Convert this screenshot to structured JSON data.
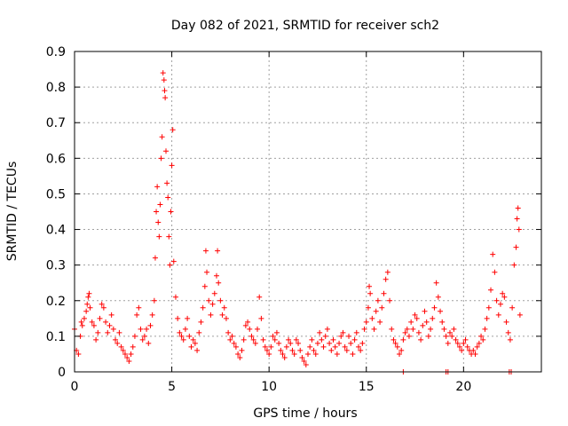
{
  "chart_data": {
    "type": "scatter",
    "title": "Day 082 of 2021, SRMTID for receiver sch2",
    "xlabel": "GPS time / hours",
    "ylabel": "SRMTID / TECUs",
    "xlim": [
      0,
      24
    ],
    "ylim": [
      0,
      0.9
    ],
    "xticks": [
      0,
      5,
      10,
      15,
      20
    ],
    "yticks": [
      0,
      0.1,
      0.2,
      0.3,
      0.4,
      0.5,
      0.6,
      0.7,
      0.8,
      0.9
    ],
    "x_tick_labels": [
      "0",
      "5",
      "10",
      "15",
      "20"
    ],
    "y_tick_labels": [
      "0",
      "0.1",
      "0.2",
      "0.3",
      "0.4",
      "0.5",
      "0.6",
      "0.7",
      "0.8",
      "0.9"
    ],
    "grid": true,
    "legend": "none",
    "marker": "+",
    "series": [
      {
        "name": "SRMTID",
        "color": "#ff0000",
        "points": [
          [
            0.0,
            0.12
          ],
          [
            0.1,
            0.06
          ],
          [
            0.2,
            0.05
          ],
          [
            0.3,
            0.1
          ],
          [
            0.35,
            0.14
          ],
          [
            0.4,
            0.13
          ],
          [
            0.5,
            0.15
          ],
          [
            0.6,
            0.17
          ],
          [
            0.65,
            0.19
          ],
          [
            0.7,
            0.21
          ],
          [
            0.75,
            0.22
          ],
          [
            0.8,
            0.18
          ],
          [
            0.9,
            0.14
          ],
          [
            1.0,
            0.13
          ],
          [
            1.1,
            0.09
          ],
          [
            1.2,
            0.11
          ],
          [
            1.3,
            0.15
          ],
          [
            1.4,
            0.19
          ],
          [
            1.5,
            0.18
          ],
          [
            1.6,
            0.14
          ],
          [
            1.7,
            0.11
          ],
          [
            1.8,
            0.13
          ],
          [
            1.9,
            0.16
          ],
          [
            2.0,
            0.12
          ],
          [
            2.1,
            0.09
          ],
          [
            2.2,
            0.08
          ],
          [
            2.3,
            0.11
          ],
          [
            2.4,
            0.07
          ],
          [
            2.5,
            0.06
          ],
          [
            2.6,
            0.05
          ],
          [
            2.7,
            0.04
          ],
          [
            2.8,
            0.03
          ],
          [
            2.9,
            0.05
          ],
          [
            3.0,
            0.07
          ],
          [
            3.1,
            0.1
          ],
          [
            3.2,
            0.16
          ],
          [
            3.3,
            0.18
          ],
          [
            3.4,
            0.12
          ],
          [
            3.5,
            0.09
          ],
          [
            3.6,
            0.1
          ],
          [
            3.7,
            0.12
          ],
          [
            3.8,
            0.08
          ],
          [
            3.9,
            0.13
          ],
          [
            4.0,
            0.16
          ],
          [
            4.1,
            0.2
          ],
          [
            4.15,
            0.32
          ],
          [
            4.2,
            0.45
          ],
          [
            4.25,
            0.52
          ],
          [
            4.3,
            0.42
          ],
          [
            4.35,
            0.38
          ],
          [
            4.4,
            0.47
          ],
          [
            4.45,
            0.6
          ],
          [
            4.5,
            0.66
          ],
          [
            4.55,
            0.84
          ],
          [
            4.6,
            0.82
          ],
          [
            4.63,
            0.79
          ],
          [
            4.66,
            0.77
          ],
          [
            4.7,
            0.62
          ],
          [
            4.75,
            0.53
          ],
          [
            4.8,
            0.49
          ],
          [
            4.85,
            0.38
          ],
          [
            4.9,
            0.3
          ],
          [
            4.95,
            0.45
          ],
          [
            5.0,
            0.58
          ],
          [
            5.05,
            0.68
          ],
          [
            5.1,
            0.31
          ],
          [
            5.2,
            0.21
          ],
          [
            5.3,
            0.15
          ],
          [
            5.4,
            0.11
          ],
          [
            5.5,
            0.1
          ],
          [
            5.6,
            0.09
          ],
          [
            5.7,
            0.12
          ],
          [
            5.8,
            0.15
          ],
          [
            5.9,
            0.1
          ],
          [
            6.0,
            0.07
          ],
          [
            6.1,
            0.09
          ],
          [
            6.2,
            0.08
          ],
          [
            6.3,
            0.06
          ],
          [
            6.4,
            0.11
          ],
          [
            6.5,
            0.14
          ],
          [
            6.6,
            0.18
          ],
          [
            6.7,
            0.24
          ],
          [
            6.75,
            0.34
          ],
          [
            6.8,
            0.28
          ],
          [
            6.9,
            0.2
          ],
          [
            7.0,
            0.16
          ],
          [
            7.1,
            0.19
          ],
          [
            7.2,
            0.22
          ],
          [
            7.3,
            0.27
          ],
          [
            7.35,
            0.34
          ],
          [
            7.4,
            0.25
          ],
          [
            7.5,
            0.2
          ],
          [
            7.6,
            0.16
          ],
          [
            7.7,
            0.18
          ],
          [
            7.8,
            0.15
          ],
          [
            7.9,
            0.11
          ],
          [
            8.0,
            0.09
          ],
          [
            8.1,
            0.1
          ],
          [
            8.2,
            0.08
          ],
          [
            8.3,
            0.07
          ],
          [
            8.4,
            0.05
          ],
          [
            8.5,
            0.04
          ],
          [
            8.6,
            0.06
          ],
          [
            8.7,
            0.09
          ],
          [
            8.8,
            0.13
          ],
          [
            8.9,
            0.14
          ],
          [
            9.0,
            0.12
          ],
          [
            9.1,
            0.1
          ],
          [
            9.2,
            0.09
          ],
          [
            9.3,
            0.08
          ],
          [
            9.4,
            0.12
          ],
          [
            9.5,
            0.21
          ],
          [
            9.6,
            0.15
          ],
          [
            9.7,
            0.09
          ],
          [
            9.8,
            0.07
          ],
          [
            9.9,
            0.06
          ],
          [
            10.0,
            0.05
          ],
          [
            10.1,
            0.07
          ],
          [
            10.2,
            0.1
          ],
          [
            10.3,
            0.09
          ],
          [
            10.4,
            0.11
          ],
          [
            10.5,
            0.08
          ],
          [
            10.6,
            0.06
          ],
          [
            10.7,
            0.05
          ],
          [
            10.8,
            0.04
          ],
          [
            10.9,
            0.07
          ],
          [
            11.0,
            0.09
          ],
          [
            11.1,
            0.08
          ],
          [
            11.2,
            0.06
          ],
          [
            11.3,
            0.05
          ],
          [
            11.4,
            0.09
          ],
          [
            11.5,
            0.08
          ],
          [
            11.6,
            0.06
          ],
          [
            11.7,
            0.04
          ],
          [
            11.8,
            0.03
          ],
          [
            11.9,
            0.02
          ],
          [
            12.0,
            0.05
          ],
          [
            12.1,
            0.07
          ],
          [
            12.2,
            0.09
          ],
          [
            12.3,
            0.06
          ],
          [
            12.4,
            0.05
          ],
          [
            12.5,
            0.08
          ],
          [
            12.6,
            0.11
          ],
          [
            12.7,
            0.09
          ],
          [
            12.8,
            0.07
          ],
          [
            12.9,
            0.1
          ],
          [
            13.0,
            0.12
          ],
          [
            13.1,
            0.08
          ],
          [
            13.2,
            0.06
          ],
          [
            13.3,
            0.09
          ],
          [
            13.4,
            0.07
          ],
          [
            13.5,
            0.05
          ],
          [
            13.6,
            0.08
          ],
          [
            13.7,
            0.1
          ],
          [
            13.8,
            0.11
          ],
          [
            13.9,
            0.07
          ],
          [
            14.0,
            0.06
          ],
          [
            14.1,
            0.1
          ],
          [
            14.2,
            0.08
          ],
          [
            14.3,
            0.05
          ],
          [
            14.4,
            0.09
          ],
          [
            14.5,
            0.11
          ],
          [
            14.6,
            0.07
          ],
          [
            14.7,
            0.06
          ],
          [
            14.8,
            0.08
          ],
          [
            14.9,
            0.12
          ],
          [
            15.0,
            0.14
          ],
          [
            15.1,
            0.18
          ],
          [
            15.15,
            0.24
          ],
          [
            15.2,
            0.22
          ],
          [
            15.3,
            0.15
          ],
          [
            15.4,
            0.12
          ],
          [
            15.5,
            0.17
          ],
          [
            15.6,
            0.2
          ],
          [
            15.7,
            0.14
          ],
          [
            15.8,
            0.18
          ],
          [
            15.9,
            0.22
          ],
          [
            16.0,
            0.26
          ],
          [
            16.1,
            0.28
          ],
          [
            16.2,
            0.2
          ],
          [
            16.3,
            0.12
          ],
          [
            16.4,
            0.09
          ],
          [
            16.5,
            0.08
          ],
          [
            16.6,
            0.07
          ],
          [
            16.7,
            0.05
          ],
          [
            16.8,
            0.06
          ],
          [
            16.9,
            0.09
          ],
          [
            17.0,
            0.11
          ],
          [
            17.1,
            0.12
          ],
          [
            17.2,
            0.1
          ],
          [
            17.3,
            0.14
          ],
          [
            17.4,
            0.12
          ],
          [
            17.5,
            0.16
          ],
          [
            17.6,
            0.15
          ],
          [
            17.7,
            0.11
          ],
          [
            17.8,
            0.09
          ],
          [
            17.9,
            0.13
          ],
          [
            18.0,
            0.17
          ],
          [
            18.1,
            0.14
          ],
          [
            18.2,
            0.1
          ],
          [
            18.3,
            0.12
          ],
          [
            18.4,
            0.15
          ],
          [
            18.5,
            0.18
          ],
          [
            18.6,
            0.25
          ],
          [
            18.7,
            0.21
          ],
          [
            18.8,
            0.17
          ],
          [
            18.9,
            0.14
          ],
          [
            19.0,
            0.12
          ],
          [
            19.1,
            0.1
          ],
          [
            19.2,
            0.08
          ],
          [
            19.3,
            0.11
          ],
          [
            19.4,
            0.1
          ],
          [
            19.5,
            0.12
          ],
          [
            19.6,
            0.09
          ],
          [
            19.7,
            0.08
          ],
          [
            19.8,
            0.07
          ],
          [
            19.9,
            0.06
          ],
          [
            20.0,
            0.08
          ],
          [
            20.1,
            0.09
          ],
          [
            20.2,
            0.07
          ],
          [
            20.3,
            0.06
          ],
          [
            20.4,
            0.05
          ],
          [
            20.5,
            0.06
          ],
          [
            20.6,
            0.05
          ],
          [
            20.7,
            0.07
          ],
          [
            20.8,
            0.08
          ],
          [
            20.9,
            0.1
          ],
          [
            21.0,
            0.09
          ],
          [
            21.1,
            0.12
          ],
          [
            21.2,
            0.15
          ],
          [
            21.3,
            0.18
          ],
          [
            21.4,
            0.23
          ],
          [
            21.5,
            0.33
          ],
          [
            21.6,
            0.28
          ],
          [
            21.7,
            0.2
          ],
          [
            21.8,
            0.16
          ],
          [
            21.9,
            0.19
          ],
          [
            22.0,
            0.22
          ],
          [
            22.1,
            0.21
          ],
          [
            22.2,
            0.14
          ],
          [
            22.3,
            0.11
          ],
          [
            22.4,
            0.09
          ],
          [
            22.5,
            0.18
          ],
          [
            22.6,
            0.3
          ],
          [
            22.7,
            0.35
          ],
          [
            22.75,
            0.43
          ],
          [
            22.8,
            0.46
          ],
          [
            22.85,
            0.4
          ],
          [
            22.9,
            0.16
          ],
          [
            16.9,
            0.0
          ],
          [
            19.1,
            0.0
          ],
          [
            19.2,
            0.0
          ],
          [
            22.35,
            0.0
          ],
          [
            22.45,
            0.0
          ]
        ]
      }
    ]
  }
}
